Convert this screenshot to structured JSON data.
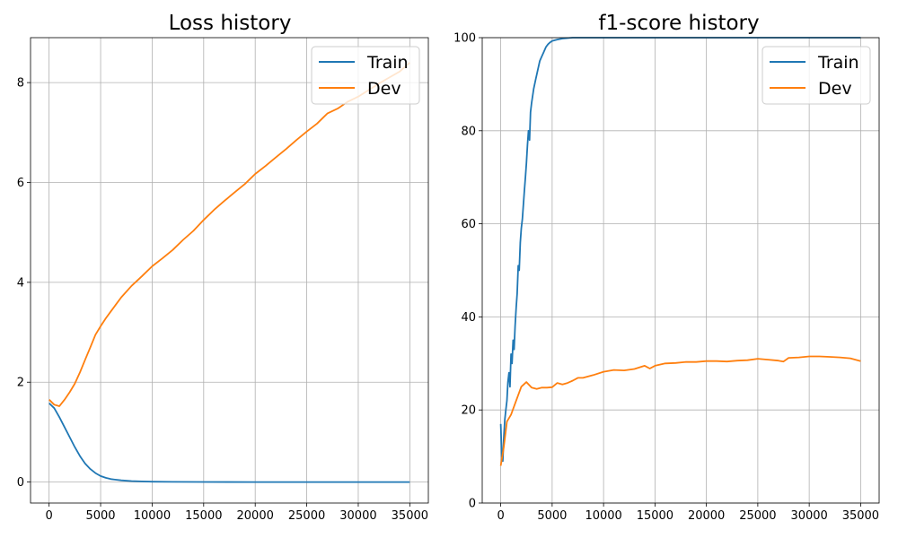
{
  "chart_data": [
    {
      "type": "line",
      "title": "Loss history",
      "xlabel": "",
      "ylabel": "",
      "xlim": [
        -1800,
        36800
      ],
      "ylim": [
        -0.42,
        8.9
      ],
      "xticks": [
        0,
        5000,
        10000,
        15000,
        20000,
        25000,
        30000,
        35000
      ],
      "yticks": [
        0,
        2,
        4,
        6,
        8
      ],
      "grid": true,
      "legend_position": "top-right",
      "series": [
        {
          "name": "Train",
          "color": "#1f77b4",
          "x": [
            0,
            500,
            1000,
            1500,
            2000,
            2500,
            3000,
            3500,
            4000,
            4500,
            5000,
            5500,
            6000,
            7000,
            8000,
            9000,
            10000,
            12000,
            15000,
            20000,
            25000,
            30000,
            35000
          ],
          "y": [
            1.58,
            1.48,
            1.3,
            1.1,
            0.9,
            0.7,
            0.52,
            0.37,
            0.26,
            0.18,
            0.12,
            0.085,
            0.06,
            0.035,
            0.02,
            0.012,
            0.008,
            0.004,
            0.002,
            0.001,
            0.001,
            0.001,
            0.001
          ]
        },
        {
          "name": "Dev",
          "color": "#ff7f0e",
          "x": [
            0,
            500,
            1000,
            1500,
            2000,
            2500,
            3000,
            3500,
            4000,
            4500,
            5000,
            5500,
            6000,
            7000,
            8000,
            9000,
            10000,
            11000,
            12000,
            13000,
            14000,
            15000,
            16000,
            17000,
            18000,
            19000,
            20000,
            21000,
            22000,
            23000,
            24000,
            25000,
            26000,
            26500,
            27000,
            28000,
            29000,
            30000,
            31000,
            32000,
            33000,
            34000,
            35000
          ],
          "y": [
            1.65,
            1.55,
            1.52,
            1.65,
            1.8,
            1.97,
            2.2,
            2.45,
            2.7,
            2.95,
            3.12,
            3.28,
            3.42,
            3.7,
            3.93,
            4.12,
            4.32,
            4.48,
            4.65,
            4.85,
            5.03,
            5.25,
            5.45,
            5.63,
            5.8,
            5.97,
            6.17,
            6.33,
            6.5,
            6.67,
            6.85,
            7.02,
            7.18,
            7.28,
            7.38,
            7.48,
            7.62,
            7.72,
            7.85,
            7.98,
            8.1,
            8.22,
            8.4
          ]
        }
      ]
    },
    {
      "type": "line",
      "title": "f1-score history",
      "xlabel": "",
      "ylabel": "",
      "xlim": [
        -1800,
        36800
      ],
      "ylim": [
        0,
        100
      ],
      "xticks": [
        0,
        5000,
        10000,
        15000,
        20000,
        25000,
        30000,
        35000
      ],
      "yticks": [
        0,
        20,
        40,
        60,
        80,
        100
      ],
      "grid": true,
      "legend_position": "top-right",
      "series": [
        {
          "name": "Train",
          "color": "#1f77b4",
          "x": [
            0,
            100,
            200,
            300,
            400,
            500,
            600,
            700,
            800,
            900,
            1000,
            1100,
            1200,
            1300,
            1400,
            1500,
            1600,
            1700,
            1800,
            1900,
            2000,
            2100,
            2200,
            2300,
            2400,
            2500,
            2600,
            2700,
            2800,
            2900,
            3000,
            3200,
            3400,
            3600,
            3800,
            4000,
            4200,
            4400,
            4600,
            4800,
            5000,
            5500,
            6000,
            6500,
            7000,
            8000,
            10000,
            15000,
            20000,
            25000,
            30000,
            35000
          ],
          "y": [
            17,
            10,
            9,
            14,
            18,
            20,
            22,
            26,
            28,
            25,
            32,
            30,
            35,
            33,
            38,
            42,
            45,
            51,
            50,
            56,
            59,
            61,
            64,
            67,
            70,
            73,
            77,
            80,
            78,
            84,
            86,
            89,
            91,
            93,
            95,
            96,
            97,
            98,
            98.6,
            99,
            99.3,
            99.6,
            99.8,
            99.9,
            100,
            100,
            100,
            100,
            100,
            100,
            100,
            100
          ]
        },
        {
          "name": "Dev",
          "color": "#ff7f0e",
          "x": [
            0,
            300,
            600,
            1000,
            1500,
            2000,
            2500,
            3000,
            3500,
            4000,
            4500,
            5000,
            5500,
            6000,
            6500,
            7000,
            7500,
            8000,
            9000,
            10000,
            11000,
            12000,
            13000,
            14000,
            14500,
            15000,
            16000,
            17000,
            18000,
            19000,
            20000,
            21000,
            22000,
            23000,
            24000,
            25000,
            26000,
            27000,
            27500,
            28000,
            29000,
            30000,
            31000,
            32000,
            33000,
            34000,
            35000
          ],
          "y": [
            8,
            12,
            17.5,
            19,
            22,
            25,
            26,
            24.8,
            24.5,
            24.8,
            24.8,
            24.9,
            25.8,
            25.5,
            25.8,
            26.3,
            26.9,
            26.9,
            27.5,
            28.2,
            28.6,
            28.5,
            28.8,
            29.5,
            28.9,
            29.5,
            30,
            30.1,
            30.3,
            30.3,
            30.5,
            30.5,
            30.4,
            30.6,
            30.7,
            31,
            30.8,
            30.6,
            30.4,
            31.2,
            31.3,
            31.5,
            31.5,
            31.4,
            31.3,
            31.1,
            30.5
          ]
        }
      ]
    }
  ]
}
